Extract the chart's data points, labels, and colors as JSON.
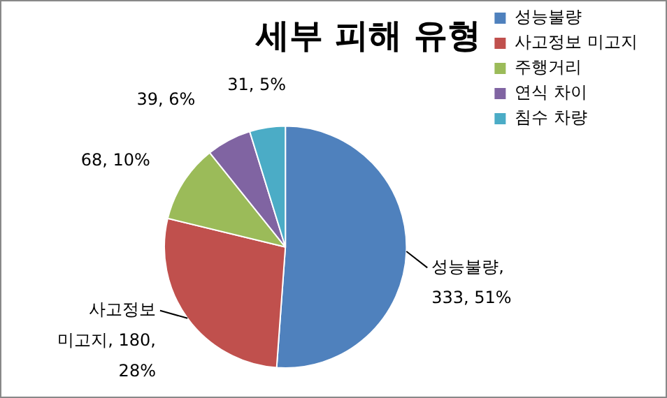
{
  "chart_data": {
    "type": "pie",
    "title": "세부 피해 유형",
    "categories": [
      "성능불량",
      "사고정보 미고지",
      "주행거리",
      "연식 차이",
      "침수 차량"
    ],
    "values": [
      333,
      180,
      68,
      39,
      31
    ],
    "colors": [
      "#4f81bd",
      "#c0504d",
      "#9bbb59",
      "#8064a2",
      "#4bacc6"
    ],
    "value_labels": [
      "성능불량, 333, 51%",
      "사고정보 미고지, 180, 28%",
      "68, 10%",
      "39, 6%",
      "31, 5%"
    ],
    "legend": "right"
  }
}
